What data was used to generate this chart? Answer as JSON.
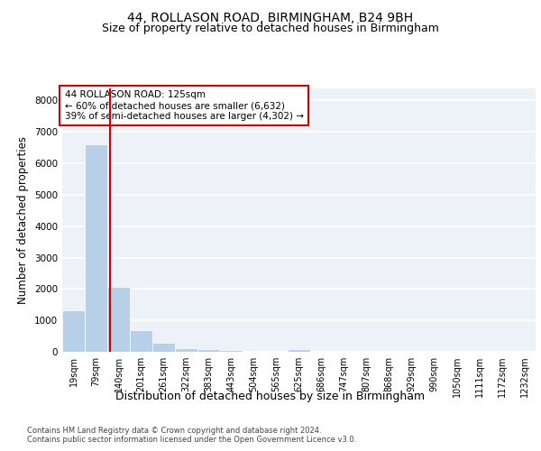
{
  "title1": "44, ROLLASON ROAD, BIRMINGHAM, B24 9BH",
  "title2": "Size of property relative to detached houses in Birmingham",
  "xlabel": "Distribution of detached houses by size in Birmingham",
  "ylabel": "Number of detached properties",
  "categories": [
    "19sqm",
    "79sqm",
    "140sqm",
    "201sqm",
    "261sqm",
    "322sqm",
    "383sqm",
    "443sqm",
    "504sqm",
    "565sqm",
    "625sqm",
    "686sqm",
    "747sqm",
    "807sqm",
    "868sqm",
    "929sqm",
    "990sqm",
    "1050sqm",
    "1111sqm",
    "1172sqm",
    "1232sqm"
  ],
  "values": [
    1310,
    6600,
    2060,
    680,
    300,
    120,
    75,
    60,
    0,
    0,
    85,
    0,
    0,
    0,
    0,
    0,
    0,
    0,
    0,
    0,
    0
  ],
  "bar_color": "#b8cfe8",
  "bar_edge_color": "#b8cfe8",
  "vline_color": "#cc0000",
  "vline_xindex": 1.62,
  "annotation_text": "44 ROLLASON ROAD: 125sqm\n← 60% of detached houses are smaller (6,632)\n39% of semi-detached houses are larger (4,302) →",
  "annotation_box_color": "white",
  "annotation_box_edge_color": "#cc0000",
  "ylim": [
    0,
    8400
  ],
  "yticks": [
    0,
    1000,
    2000,
    3000,
    4000,
    5000,
    6000,
    7000,
    8000
  ],
  "footer1": "Contains HM Land Registry data © Crown copyright and database right 2024.",
  "footer2": "Contains public sector information licensed under the Open Government Licence v3.0.",
  "background_color": "#edf2f9",
  "grid_color": "white",
  "title_fontsize": 10,
  "subtitle_fontsize": 9,
  "tick_fontsize": 7,
  "ylabel_fontsize": 8.5,
  "xlabel_fontsize": 9,
  "annotation_fontsize": 7.5
}
